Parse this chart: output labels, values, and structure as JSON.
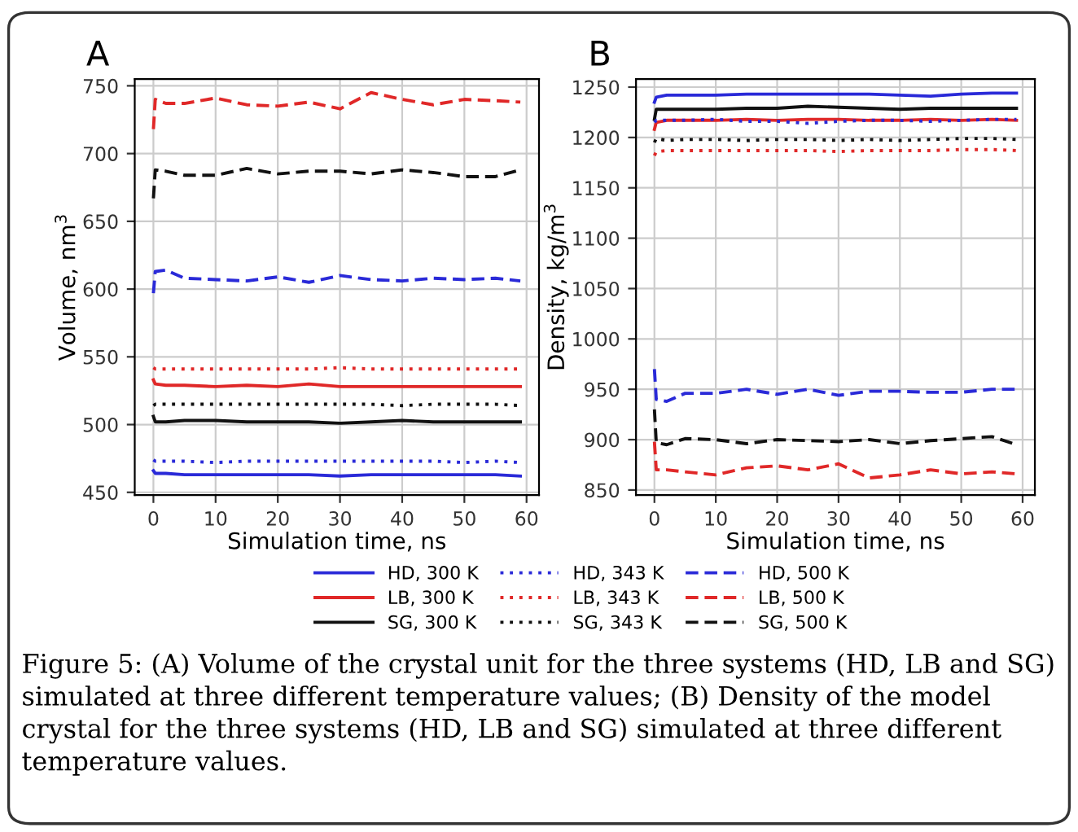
{
  "chart_data": [
    {
      "type": "line",
      "title": "A",
      "xlabel": "Simulation time, ns",
      "ylabel": "Volume, nm$^{3}$",
      "xlim": [
        -3,
        62
      ],
      "xticks": [
        0,
        10,
        20,
        30,
        40,
        50,
        60
      ],
      "ylim": [
        448,
        755
      ],
      "yticks": [
        450,
        500,
        550,
        600,
        650,
        700,
        750
      ],
      "grid": true,
      "legend": "bottom",
      "x": [
        0,
        0.3,
        2,
        5,
        10,
        15,
        20,
        25,
        30,
        35,
        40,
        45,
        50,
        55,
        59
      ],
      "annotations": [
        "Figure 5: (A) Volume of the crystal unit for the three systems (HD, LB and SG) simulated at three different temperature values; (B) Density of the model crystal for the three systems (HD, LB and SG) simulated at three different temperature values."
      ],
      "series": [
        {
          "name": "HD, 300 K",
          "color": "#2a2ad8",
          "line_style": "solid",
          "values": [
            466,
            464,
            464,
            463,
            463,
            463,
            463,
            463,
            462,
            463,
            463,
            463,
            463,
            463,
            462
          ]
        },
        {
          "name": "LB, 300 K",
          "color": "#e02828",
          "line_style": "solid",
          "values": [
            533,
            530,
            529,
            529,
            528,
            529,
            528,
            530,
            528,
            528,
            528,
            528,
            528,
            528,
            528
          ]
        },
        {
          "name": "SG, 300 K",
          "color": "#111111",
          "line_style": "solid",
          "values": [
            506,
            502,
            502,
            503,
            503,
            502,
            502,
            502,
            501,
            502,
            503,
            502,
            502,
            502,
            502
          ]
        },
        {
          "name": "HD, 343 K",
          "color": "#2a2ad8",
          "line_style": "dotted",
          "values": [
            474,
            473,
            473,
            473,
            472,
            473,
            473,
            473,
            473,
            473,
            473,
            473,
            472,
            473,
            472
          ]
        },
        {
          "name": "LB, 343 K",
          "color": "#e02828",
          "line_style": "dotted",
          "values": [
            542,
            541,
            541,
            541,
            541,
            541,
            541,
            541,
            542,
            541,
            541,
            541,
            541,
            541,
            541
          ]
        },
        {
          "name": "SG, 343 K",
          "color": "#111111",
          "line_style": "dotted",
          "values": [
            514,
            515,
            515,
            515,
            515,
            515,
            515,
            515,
            515,
            515,
            514,
            515,
            515,
            515,
            514
          ]
        },
        {
          "name": "HD, 500 K",
          "color": "#2a2ad8",
          "line_style": "dashed",
          "values": [
            597,
            613,
            614,
            608,
            607,
            606,
            609,
            605,
            610,
            607,
            606,
            608,
            607,
            608,
            606
          ]
        },
        {
          "name": "LB, 500 K",
          "color": "#e02828",
          "line_style": "dashed",
          "values": [
            718,
            740,
            737,
            737,
            741,
            736,
            735,
            738,
            733,
            745,
            740,
            736,
            740,
            739,
            738
          ]
        },
        {
          "name": "SG, 500 K",
          "color": "#111111",
          "line_style": "dashed",
          "values": [
            667,
            688,
            687,
            684,
            684,
            689,
            685,
            687,
            687,
            685,
            688,
            686,
            683,
            683,
            688
          ]
        }
      ]
    },
    {
      "type": "line",
      "title": "B",
      "xlabel": "Simulation time, ns",
      "ylabel": "Density, kg/m$^{3}$",
      "xlim": [
        -3,
        62
      ],
      "xticks": [
        0,
        10,
        20,
        30,
        40,
        50,
        60
      ],
      "ylim": [
        845,
        1258
      ],
      "yticks": [
        850,
        900,
        950,
        1000,
        1050,
        1100,
        1150,
        1200,
        1250
      ],
      "grid": true,
      "x": [
        0,
        0.3,
        2,
        5,
        10,
        15,
        20,
        25,
        30,
        35,
        40,
        45,
        50,
        55,
        59
      ],
      "series": [
        {
          "color": "#2a2ad8",
          "line_style": "solid",
          "values": [
            1235,
            1240,
            1242,
            1242,
            1242,
            1243,
            1243,
            1243,
            1243,
            1243,
            1242,
            1241,
            1243,
            1244,
            1244
          ]
        },
        {
          "color": "#e02828",
          "line_style": "solid",
          "values": [
            1208,
            1215,
            1217,
            1217,
            1217,
            1218,
            1217,
            1218,
            1218,
            1217,
            1217,
            1218,
            1217,
            1218,
            1217
          ]
        },
        {
          "color": "#111111",
          "line_style": "solid",
          "values": [
            1218,
            1228,
            1228,
            1228,
            1228,
            1229,
            1229,
            1231,
            1230,
            1229,
            1228,
            1229,
            1229,
            1229,
            1229
          ]
        },
        {
          "color": "#2a2ad8",
          "line_style": "dotted",
          "values": [
            1215,
            1217,
            1217,
            1217,
            1218,
            1216,
            1216,
            1214,
            1216,
            1217,
            1217,
            1216,
            1217,
            1218,
            1218
          ]
        },
        {
          "color": "#e02828",
          "line_style": "dotted",
          "values": [
            1182,
            1186,
            1187,
            1187,
            1187,
            1187,
            1187,
            1187,
            1186,
            1187,
            1187,
            1187,
            1188,
            1188,
            1187
          ]
        },
        {
          "color": "#111111",
          "line_style": "dotted",
          "values": [
            1195,
            1199,
            1197,
            1198,
            1198,
            1197,
            1198,
            1198,
            1197,
            1198,
            1197,
            1198,
            1199,
            1199,
            1198
          ]
        },
        {
          "color": "#2a2ad8",
          "line_style": "dashed",
          "values": [
            970,
            940,
            938,
            946,
            946,
            950,
            945,
            950,
            944,
            948,
            948,
            947,
            947,
            950,
            950
          ]
        },
        {
          "color": "#e02828",
          "line_style": "dashed",
          "values": [
            898,
            870,
            870,
            868,
            865,
            872,
            874,
            870,
            876,
            862,
            865,
            870,
            866,
            868,
            866
          ]
        },
        {
          "color": "#111111",
          "line_style": "dashed",
          "values": [
            930,
            897,
            895,
            901,
            900,
            896,
            900,
            899,
            898,
            900,
            896,
            899,
            901,
            903,
            895
          ]
        }
      ]
    }
  ]
}
